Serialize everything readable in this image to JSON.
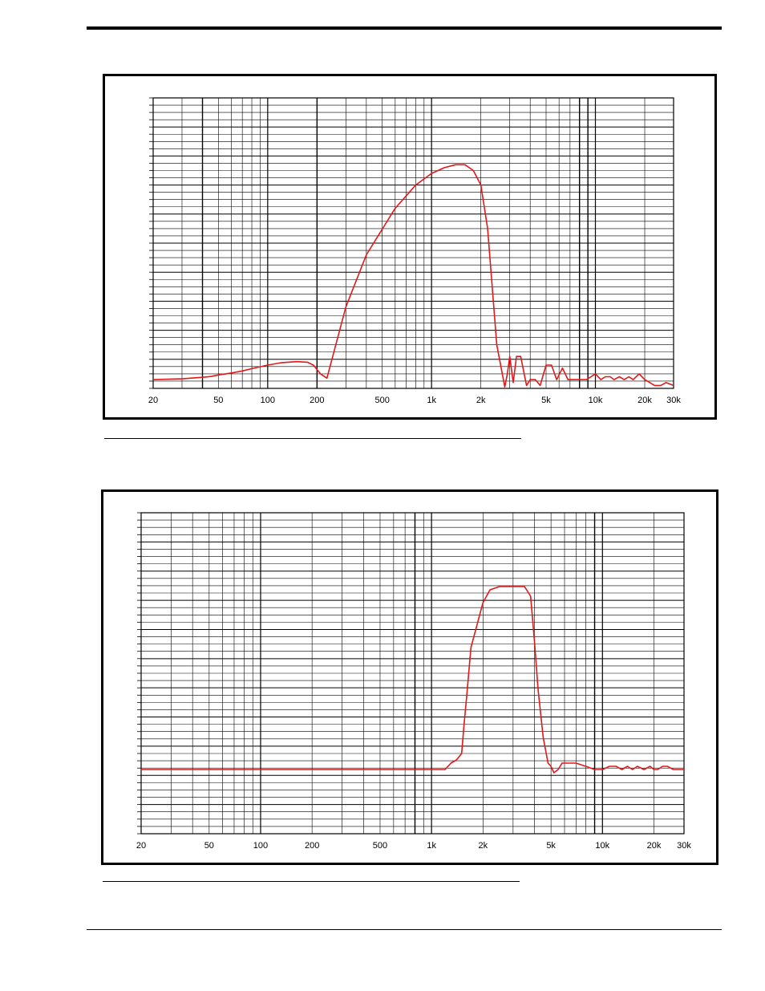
{
  "colors": {
    "curve": "#e31818",
    "grid": "#000000"
  },
  "chart_data": [
    {
      "type": "line",
      "title": "",
      "xlabel": "",
      "ylabel": "",
      "x_scale": "log",
      "xlim": [
        20,
        30000
      ],
      "grid": true,
      "x_tick_labels": [
        "20",
        "50",
        "100",
        "200",
        "500",
        "1k",
        "2k",
        "5k",
        "10k",
        "20k",
        "30k"
      ],
      "x_tick_values": [
        20,
        50,
        100,
        200,
        500,
        1000,
        2000,
        5000,
        10000,
        20000,
        30000
      ],
      "major_lines": [
        40,
        200,
        8000,
        9000
      ],
      "series": [
        {
          "x": [
            20,
            30,
            40,
            45,
            50,
            60,
            70,
            80,
            100,
            120,
            150,
            175,
            190,
            210,
            230,
            300,
            400,
            600,
            800,
            1000,
            1200,
            1400,
            1600,
            1800,
            2000,
            2200,
            2500,
            2800,
            2900,
            3000,
            3150,
            3300,
            3500,
            3800,
            4000,
            4300,
            4600,
            5000,
            5400,
            5800,
            6300,
            6800,
            7300,
            7800,
            8300,
            8800,
            9400,
            10000,
            10800,
            11500,
            12300,
            13000,
            14000,
            15000,
            16000,
            17000,
            18500,
            20000,
            21500,
            23000,
            25000,
            27000,
            30000
          ],
          "y": [
            3.0,
            3.3,
            3.8,
            4.1,
            4.6,
            5.3,
            6.0,
            6.8,
            8.0,
            8.8,
            9.2,
            9.0,
            8.0,
            5.0,
            3.5,
            28,
            46,
            62,
            70,
            74,
            76,
            77,
            77,
            75,
            70,
            55,
            15,
            0.5,
            5,
            11,
            2,
            11,
            11,
            1,
            3,
            3,
            1,
            8,
            8,
            3,
            7,
            3,
            3,
            3,
            3,
            3,
            4,
            5,
            3,
            4,
            4,
            3,
            4,
            3,
            4,
            3,
            5,
            3,
            2,
            1,
            1,
            2,
            1
          ]
        }
      ]
    },
    {
      "type": "line",
      "title": "",
      "xlabel": "",
      "ylabel": "",
      "x_scale": "log",
      "xlim": [
        20,
        30000
      ],
      "grid": true,
      "x_tick_labels": [
        "20",
        "50",
        "100",
        "200",
        "500",
        "1k",
        "2k",
        "5k",
        "10k",
        "20k",
        "30k"
      ],
      "x_tick_values": [
        20,
        50,
        100,
        200,
        500,
        1000,
        2000,
        5000,
        10000,
        20000,
        30000
      ],
      "major_lines": [
        800,
        9000
      ],
      "series": [
        {
          "x": [
            20,
            30,
            50,
            70,
            100,
            150,
            200,
            300,
            400,
            500,
            700,
            900,
            1000,
            1100,
            1200,
            1300,
            1400,
            1500,
            1550,
            1600,
            1700,
            2000,
            2200,
            2500,
            3000,
            3500,
            3800,
            4000,
            4200,
            4500,
            4800,
            5000,
            5200,
            5500,
            5800,
            6200,
            7000,
            8000,
            9000,
            9500,
            10000,
            11000,
            12000,
            13000,
            14000,
            15000,
            16000,
            17500,
            19000,
            20000,
            21000,
            22500,
            24000,
            26000,
            30000
          ],
          "y": [
            20,
            20,
            20,
            20,
            20,
            20,
            20,
            20,
            20,
            20,
            20,
            20,
            20,
            20,
            20,
            22,
            23,
            25,
            34,
            42,
            58,
            72,
            76,
            77,
            77,
            77,
            74,
            60,
            45,
            30,
            22,
            21,
            19,
            20,
            22,
            22,
            22,
            21,
            20,
            20,
            20,
            21,
            21,
            20,
            21,
            20,
            21,
            20,
            21,
            20,
            20,
            21,
            21,
            20,
            20
          ]
        }
      ]
    }
  ]
}
